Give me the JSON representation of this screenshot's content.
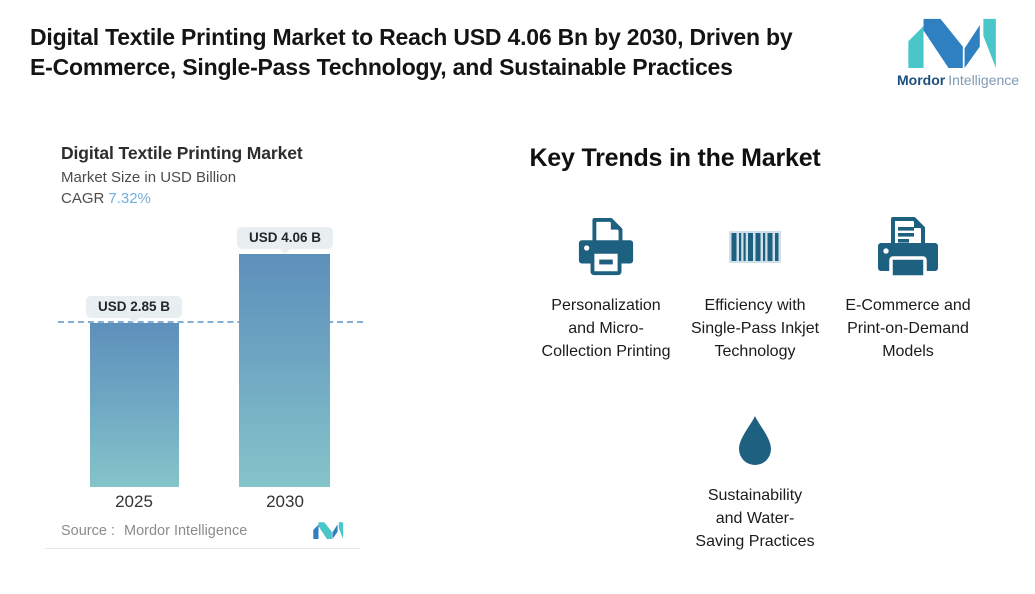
{
  "header": {
    "title_line1": "Digital Textile Printing Market to Reach USD 4.06 Bn by 2030, Driven by",
    "title_line2": "E-Commerce, Single-Pass Technology, and Sustainable Practices",
    "logo": {
      "brand_bold": "Mordor",
      "brand_light": "Intelligence",
      "blue": "#2e80c0",
      "teal": "#49c6c8"
    }
  },
  "chart_data": {
    "type": "bar",
    "title": "Digital Textile Printing Market",
    "subtitle": "Market Size in USD Billion",
    "cagr_label": "CAGR",
    "cagr_value": "7.32%",
    "cagr_color": "#74aeda",
    "categories": [
      "2025",
      "2030"
    ],
    "values": [
      2.85,
      4.06
    ],
    "value_labels": [
      "USD 2.85 B",
      "USD 4.06 B"
    ],
    "unit": "USD Billion",
    "ylim": [
      0,
      4.06
    ],
    "bar_color_top": "#5d90bb",
    "bar_color_bottom": "#85c4ca",
    "reference_line": {
      "value": 2.85,
      "style": "dashed",
      "color": "#84aed2"
    },
    "source_label": "Source :",
    "source_value": "Mordor Intelligence",
    "grid": false,
    "legend": false
  },
  "trends": {
    "heading": "Key Trends in the Market",
    "icon_color": "#1e6080",
    "items": [
      {
        "icon": "printer-icon",
        "label": "Personalization and Micro-Collection Printing"
      },
      {
        "icon": "barcode-icon",
        "label": "Efficiency with Single-Pass Inkjet Technology"
      },
      {
        "icon": "printer-document-icon",
        "label": "E-Commerce and Print-on-Demand Models"
      },
      {
        "icon": "water-drop-icon",
        "label": "Sustainability and Water-Saving Practices"
      }
    ]
  }
}
